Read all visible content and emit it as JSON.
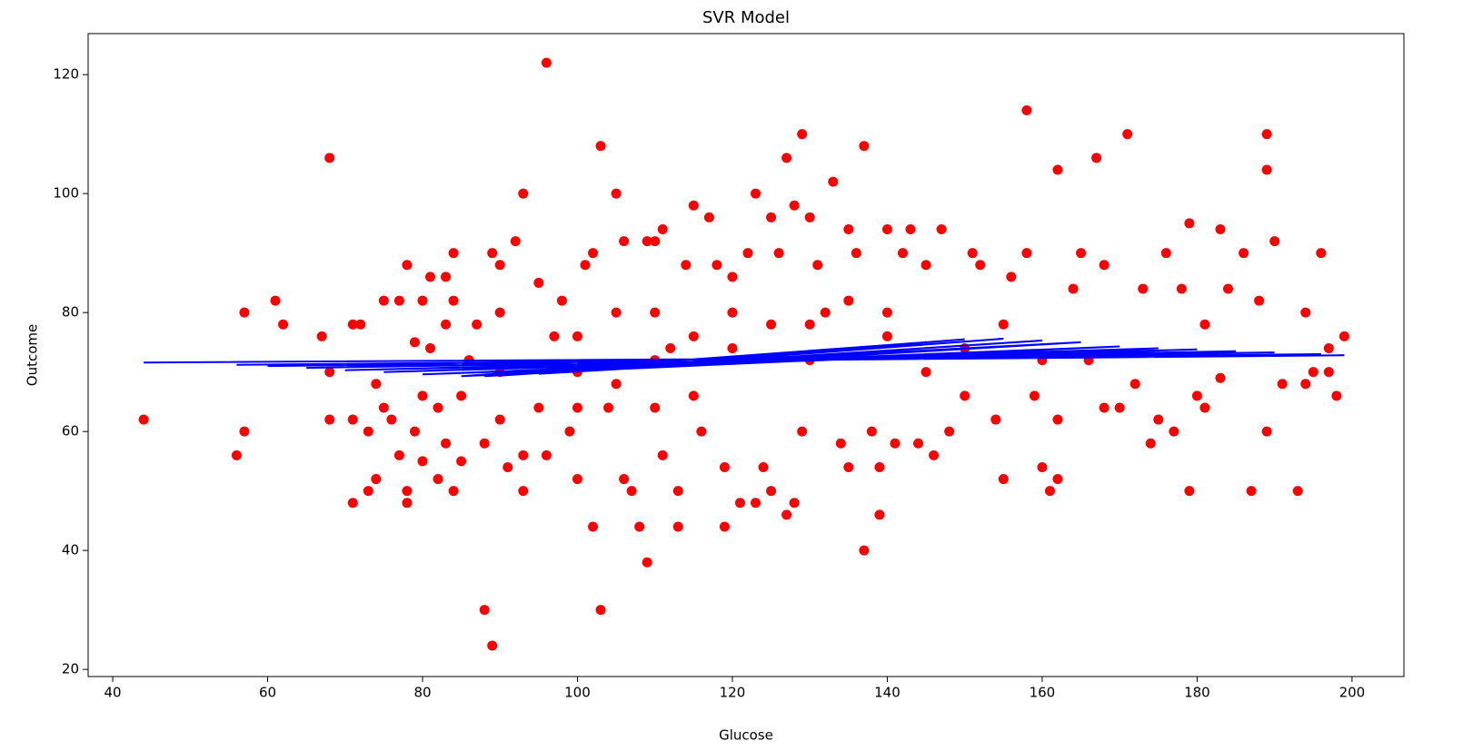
{
  "chart_data": {
    "type": "scatter",
    "title": "SVR Model",
    "x_label": "Glucose",
    "y_label": "Outcome",
    "xlim": [
      36.83,
      206.7
    ],
    "ylim": [
      18.8,
      126.9
    ],
    "xticks": [
      40,
      60,
      80,
      100,
      120,
      140,
      160,
      180,
      200
    ],
    "yticks": [
      20,
      40,
      60,
      80,
      100,
      120
    ],
    "grid": false,
    "series": [
      {
        "type": "scatter",
        "color": "#ff0000",
        "x": [
          44,
          56,
          57,
          57,
          61,
          62,
          67,
          68,
          68,
          68,
          71,
          71,
          71,
          72,
          73,
          73,
          74,
          74,
          75,
          75,
          76,
          77,
          77,
          78,
          78,
          78,
          79,
          79,
          80,
          80,
          80,
          81,
          81,
          82,
          82,
          83,
          83,
          83,
          84,
          84,
          84,
          85,
          85,
          86,
          87,
          88,
          89,
          88,
          89,
          90,
          90,
          91,
          92,
          93,
          93,
          93,
          95,
          96,
          96,
          97,
          98,
          99,
          100,
          101,
          102,
          102,
          103,
          103,
          104,
          105,
          106,
          106,
          107,
          108,
          109,
          109,
          110,
          111,
          111,
          112,
          113,
          113,
          114,
          115,
          116,
          117,
          118,
          119,
          119,
          120,
          121,
          122,
          123,
          123,
          124,
          125,
          125,
          126,
          127,
          127,
          128,
          128,
          129,
          129,
          130,
          131,
          132,
          133,
          134,
          135,
          135,
          136,
          137,
          137,
          138,
          139,
          139,
          140,
          141,
          142,
          143,
          144,
          145,
          146,
          147,
          148,
          150,
          151,
          152,
          154,
          155,
          156,
          158,
          158,
          159,
          160,
          161,
          162,
          162,
          162,
          164,
          165,
          166,
          167,
          168,
          168,
          170,
          171,
          172,
          173,
          174,
          175,
          176,
          177,
          178,
          179,
          179,
          180,
          181,
          181,
          183,
          183,
          184,
          186,
          187,
          188,
          189,
          189,
          189,
          190,
          191,
          193,
          194,
          194,
          195,
          196,
          197,
          197,
          198,
          199,
          100,
          110,
          120,
          130,
          140,
          150,
          160,
          90,
          145,
          115,
          105,
          100,
          110,
          120,
          125,
          135,
          100,
          110,
          95,
          90,
          105,
          115,
          130,
          140,
          155
        ],
        "values": [
          62,
          56,
          80,
          60,
          82,
          78,
          76,
          106,
          62,
          70,
          48,
          62,
          78,
          78,
          60,
          50,
          52,
          68,
          82,
          64,
          62,
          56,
          82,
          88,
          50,
          48,
          75,
          60,
          82,
          55,
          66,
          74,
          86,
          52,
          64,
          86,
          78,
          58,
          90,
          50,
          82,
          55,
          66,
          72,
          78,
          30,
          24,
          58,
          90,
          88,
          80,
          54,
          92,
          100,
          50,
          56,
          85,
          122,
          56,
          76,
          82,
          60,
          52,
          88,
          90,
          44,
          108,
          30,
          64,
          100,
          92,
          52,
          50,
          44,
          38,
          92,
          92,
          94,
          56,
          74,
          44,
          50,
          88,
          98,
          60,
          96,
          88,
          44,
          54,
          86,
          48,
          90,
          100,
          48,
          54,
          96,
          50,
          90,
          106,
          46,
          98,
          48,
          110,
          60,
          96,
          88,
          80,
          102,
          58,
          94,
          54,
          90,
          108,
          40,
          60,
          46,
          54,
          94,
          58,
          90,
          94,
          58,
          88,
          56,
          94,
          60,
          66,
          90,
          88,
          62,
          52,
          86,
          114,
          90,
          66,
          54,
          50,
          104,
          52,
          62,
          84,
          90,
          72,
          106,
          64,
          88,
          64,
          110,
          68,
          84,
          58,
          62,
          90,
          60,
          84,
          95,
          50,
          66,
          78,
          64,
          94,
          69,
          84,
          90,
          50,
          82,
          110,
          104,
          60,
          92,
          68,
          50,
          80,
          68,
          70,
          90,
          70,
          74,
          66,
          76,
          70,
          72,
          74,
          72,
          76,
          74,
          72,
          70,
          70,
          66,
          80,
          76,
          80,
          80,
          78,
          82,
          64,
          64,
          64,
          62,
          68,
          76,
          78,
          80,
          78
        ]
      },
      {
        "type": "line",
        "color": "#0000ff",
        "x": [
          44,
          199,
          56,
          196,
          60,
          190,
          65,
          185,
          70,
          180,
          75,
          175,
          80,
          170,
          85,
          165,
          88,
          160,
          90,
          155,
          95,
          150,
          100,
          147,
          105,
          145,
          110,
          140,
          115,
          135,
          120,
          130,
          125,
          128,
          88,
          150,
          90,
          160,
          100,
          155,
          110,
          165,
          95,
          145,
          85,
          170
        ],
        "values": [
          71.6,
          72.8,
          71.2,
          73.0,
          71.0,
          73.3,
          70.7,
          73.5,
          70.3,
          73.8,
          70.0,
          74.0,
          69.6,
          74.3,
          69.3,
          75.0,
          69.3,
          75.3,
          69.4,
          75.6,
          69.7,
          75.5,
          70.2,
          75.2,
          70.8,
          75.0,
          71.3,
          74.5,
          71.9,
          74.0,
          72.5,
          73.5,
          73.0,
          73.3,
          69.3,
          75.5,
          69.4,
          75.3,
          70.2,
          75.6,
          71.3,
          75.0,
          69.7,
          75.0,
          69.3,
          74.3
        ]
      }
    ]
  }
}
